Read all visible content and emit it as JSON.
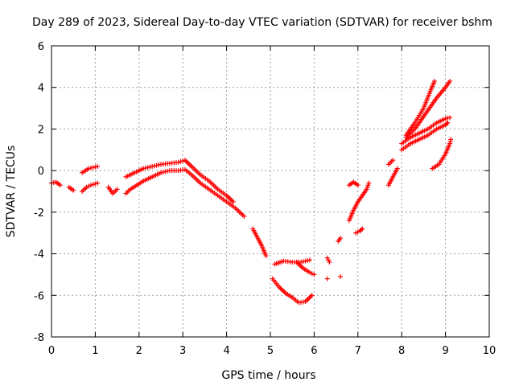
{
  "chart_data": {
    "type": "scatter",
    "title": "Day 289 of 2023, Sidereal Day-to-day VTEC variation (SDTVAR) for receiver bshm",
    "xlabel": "GPS time / hours",
    "ylabel": "SDTVAR / TECUs",
    "xlim": [
      0,
      10
    ],
    "ylim": [
      -8,
      6
    ],
    "xticks": [
      "0",
      "1",
      "2",
      "3",
      "4",
      "5",
      "6",
      "7",
      "8",
      "9",
      "10"
    ],
    "yticks": [
      "-8",
      "-6",
      "-4",
      "-2",
      "0",
      "2",
      "4",
      "6"
    ],
    "grid": true,
    "marker": "+",
    "color": "#ff0000",
    "series": [
      {
        "segments": [
          [
            [
              0.0,
              -0.6
            ],
            [
              0.1,
              -0.55
            ],
            [
              0.2,
              -0.7
            ]
          ],
          [
            [
              0.4,
              -0.8
            ],
            [
              0.5,
              -0.95
            ]
          ],
          [
            [
              0.7,
              -1.0
            ],
            [
              0.8,
              -0.8
            ],
            [
              0.9,
              -0.7
            ],
            [
              1.05,
              -0.6
            ]
          ],
          [
            [
              0.7,
              -0.1
            ],
            [
              0.85,
              0.1
            ],
            [
              1.05,
              0.2
            ]
          ],
          [
            [
              1.3,
              -0.8
            ],
            [
              1.4,
              -1.1
            ],
            [
              1.5,
              -0.9
            ]
          ],
          [
            [
              1.7,
              -1.1
            ],
            [
              1.8,
              -0.9
            ],
            [
              1.95,
              -0.7
            ],
            [
              2.1,
              -0.5
            ],
            [
              2.3,
              -0.3
            ],
            [
              2.5,
              -0.1
            ],
            [
              2.7,
              0.0
            ],
            [
              2.9,
              0.0
            ],
            [
              3.05,
              0.05
            ],
            [
              3.2,
              -0.2
            ],
            [
              3.4,
              -0.6
            ],
            [
              3.6,
              -0.9
            ],
            [
              3.8,
              -1.2
            ],
            [
              4.0,
              -1.5
            ],
            [
              4.2,
              -1.8
            ],
            [
              4.4,
              -2.2
            ]
          ],
          [
            [
              1.7,
              -0.3
            ],
            [
              1.9,
              -0.1
            ],
            [
              2.1,
              0.1
            ],
            [
              2.3,
              0.2
            ],
            [
              2.5,
              0.3
            ],
            [
              2.7,
              0.35
            ],
            [
              2.9,
              0.4
            ],
            [
              3.05,
              0.5
            ],
            [
              3.2,
              0.2
            ],
            [
              3.4,
              -0.2
            ],
            [
              3.6,
              -0.5
            ],
            [
              3.8,
              -0.9
            ],
            [
              4.0,
              -1.2
            ],
            [
              4.15,
              -1.5
            ]
          ],
          [
            [
              4.6,
              -2.8
            ],
            [
              4.7,
              -3.2
            ],
            [
              4.8,
              -3.6
            ],
            [
              4.9,
              -4.1
            ]
          ],
          [
            [
              5.05,
              -5.2
            ],
            [
              5.2,
              -5.6
            ],
            [
              5.35,
              -5.9
            ],
            [
              5.5,
              -6.1
            ],
            [
              5.65,
              -6.35
            ],
            [
              5.8,
              -6.3
            ],
            [
              5.95,
              -6.0
            ]
          ],
          [
            [
              5.1,
              -4.5
            ],
            [
              5.3,
              -4.35
            ],
            [
              5.5,
              -4.4
            ],
            [
              5.7,
              -4.4
            ],
            [
              5.9,
              -4.3
            ]
          ],
          [
            [
              5.6,
              -4.4
            ],
            [
              5.75,
              -4.7
            ],
            [
              5.9,
              -4.9
            ],
            [
              6.0,
              -5.0
            ]
          ],
          [
            [
              6.3,
              -4.2
            ],
            [
              6.35,
              -4.4
            ]
          ],
          [
            [
              6.3,
              -5.2
            ]
          ],
          [
            [
              6.6,
              -5.1
            ]
          ],
          [
            [
              6.55,
              -3.4
            ],
            [
              6.6,
              -3.25
            ]
          ],
          [
            [
              6.95,
              -3.0
            ],
            [
              7.05,
              -2.9
            ],
            [
              7.1,
              -2.8
            ]
          ],
          [
            [
              6.8,
              -2.4
            ],
            [
              6.9,
              -1.9
            ],
            [
              7.0,
              -1.5
            ],
            [
              7.1,
              -1.2
            ],
            [
              7.2,
              -0.9
            ],
            [
              7.25,
              -0.6
            ]
          ],
          [
            [
              6.8,
              -0.7
            ],
            [
              6.9,
              -0.55
            ],
            [
              7.0,
              -0.7
            ]
          ],
          [
            [
              7.7,
              -0.7
            ],
            [
              7.8,
              -0.3
            ],
            [
              7.9,
              0.1
            ]
          ],
          [
            [
              7.7,
              0.3
            ],
            [
              7.8,
              0.5
            ]
          ],
          [
            [
              8.0,
              1.0
            ],
            [
              8.2,
              1.3
            ],
            [
              8.4,
              1.5
            ],
            [
              8.6,
              1.7
            ],
            [
              8.8,
              2.0
            ],
            [
              9.0,
              2.2
            ],
            [
              9.05,
              2.3
            ]
          ],
          [
            [
              8.0,
              1.3
            ],
            [
              8.2,
              1.6
            ],
            [
              8.4,
              1.8
            ],
            [
              8.6,
              2.0
            ],
            [
              8.8,
              2.3
            ],
            [
              9.0,
              2.5
            ],
            [
              9.1,
              2.55
            ]
          ],
          [
            [
              8.1,
              1.6
            ],
            [
              8.3,
              2.0
            ],
            [
              8.5,
              2.6
            ],
            [
              8.7,
              3.2
            ],
            [
              8.8,
              3.5
            ],
            [
              9.0,
              4.0
            ],
            [
              9.1,
              4.3
            ]
          ],
          [
            [
              8.1,
              1.7
            ],
            [
              8.3,
              2.3
            ],
            [
              8.5,
              3.0
            ],
            [
              8.65,
              3.8
            ],
            [
              8.75,
              4.3
            ]
          ],
          [
            [
              8.7,
              0.1
            ],
            [
              8.85,
              0.3
            ],
            [
              9.0,
              0.8
            ],
            [
              9.1,
              1.3
            ],
            [
              9.12,
              1.5
            ]
          ]
        ]
      }
    ]
  }
}
